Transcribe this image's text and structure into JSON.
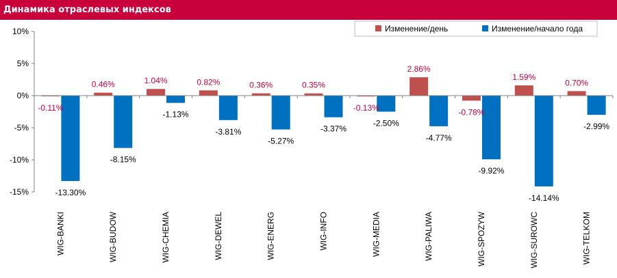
{
  "header": {
    "title": "Динамика отраслевых индексов"
  },
  "colors": {
    "header_bg": "#c8003c",
    "series_day": "#c0504d",
    "series_year": "#0070c0",
    "label_red": "#c8003c"
  },
  "chart_data": {
    "type": "bar",
    "title": "Динамика отраслевых индексов",
    "categories": [
      "WIG-BANKI",
      "WIG-BUDOW",
      "WIG-CHEMIA",
      "WIG-DEWEL",
      "WIG-ENERG",
      "WIG-INFO",
      "WIG-MEDIA",
      "WIG-PALIWA",
      "WIG-SPOZYW",
      "WIG-SUROWC",
      "WIG-TELKOM"
    ],
    "series": [
      {
        "name": "Изменение/день",
        "values": [
          -0.11,
          0.46,
          1.04,
          0.82,
          0.36,
          0.35,
          -0.13,
          2.86,
          -0.78,
          1.59,
          0.7
        ],
        "labels": [
          "-0.11%",
          "0.46%",
          "1.04%",
          "0.82%",
          "0.36%",
          "0.35%",
          "-0.13%",
          "2.86%",
          "-0.78%",
          "1.59%",
          "0.70%"
        ]
      },
      {
        "name": "Изменение/начало года",
        "values": [
          -13.3,
          -8.15,
          -1.13,
          -3.81,
          -5.27,
          -3.37,
          -2.5,
          -4.77,
          -9.92,
          -14.14,
          -2.99
        ],
        "labels": [
          "-13.30%",
          "-8.15%",
          "-1.13%",
          "-3.81%",
          "-5.27%",
          "-3.37%",
          "-2.50%",
          "-4.77%",
          "-9.92%",
          "-14.14%",
          "-2.99%"
        ]
      }
    ],
    "yticks": [
      10,
      5,
      0,
      -5,
      -10,
      -15
    ],
    "ytick_labels": [
      "10%",
      "5%",
      "0%",
      "-5%",
      "-10%",
      "-15%"
    ],
    "ylim": [
      -15,
      10
    ],
    "xlabel": "",
    "ylabel": "",
    "grid": false,
    "legend": "top-right"
  }
}
